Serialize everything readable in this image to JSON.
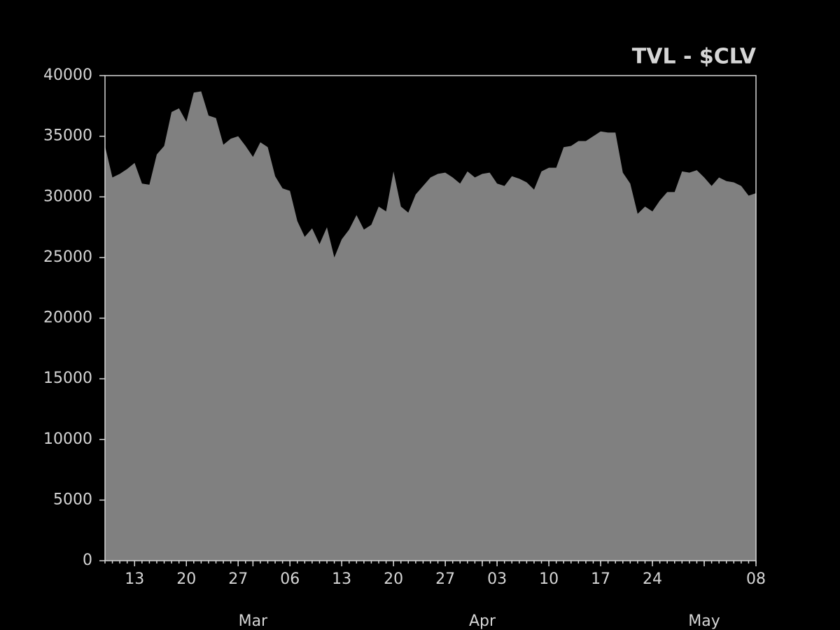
{
  "chart_data": {
    "type": "area",
    "title": "TVL - $CLV",
    "color": "#808080",
    "x": [
      "02-09",
      "02-10",
      "02-11",
      "02-12",
      "02-13",
      "02-14",
      "02-15",
      "02-16",
      "02-17",
      "02-18",
      "02-19",
      "02-20",
      "02-21",
      "02-22",
      "02-23",
      "02-24",
      "02-25",
      "02-26",
      "02-27",
      "02-28",
      "03-01",
      "03-02",
      "03-03",
      "03-04",
      "03-05",
      "03-06",
      "03-07",
      "03-08",
      "03-09",
      "03-10",
      "03-11",
      "03-12",
      "03-13",
      "03-14",
      "03-15",
      "03-16",
      "03-17",
      "03-18",
      "03-19",
      "03-20",
      "03-21",
      "03-22",
      "03-23",
      "03-24",
      "03-25",
      "03-26",
      "03-27",
      "03-28",
      "03-29",
      "03-30",
      "03-31",
      "04-01",
      "04-02",
      "04-03",
      "04-04",
      "04-05",
      "04-06",
      "04-07",
      "04-08",
      "04-09",
      "04-10",
      "04-11",
      "04-12",
      "04-13",
      "04-14",
      "04-15",
      "04-16",
      "04-17",
      "04-18",
      "04-19",
      "04-20",
      "04-21",
      "04-22",
      "04-23",
      "04-24",
      "04-25",
      "04-26",
      "04-27",
      "04-28",
      "04-29",
      "04-30",
      "05-01",
      "05-02",
      "05-03",
      "05-04",
      "05-05",
      "05-06",
      "05-07",
      "05-08"
    ],
    "values": [
      34200,
      31600,
      31900,
      32300,
      32800,
      31100,
      31000,
      33500,
      34200,
      37000,
      37300,
      36200,
      38600,
      38700,
      36700,
      36500,
      34300,
      34800,
      35000,
      34200,
      33300,
      34500,
      34100,
      31700,
      30700,
      30500,
      28000,
      26700,
      27400,
      26100,
      27500,
      25000,
      26500,
      27300,
      28500,
      27300,
      27700,
      29200,
      28800,
      32100,
      29200,
      28700,
      30200,
      30900,
      31600,
      31900,
      32000,
      31600,
      31100,
      32100,
      31600,
      31900,
      32000,
      31100,
      30900,
      31700,
      31500,
      31200,
      30600,
      32100,
      32400,
      32400,
      34100,
      34200,
      34600,
      34600,
      35000,
      35400,
      35300,
      35300,
      32000,
      31100,
      28600,
      29200,
      28800,
      29700,
      30400,
      30400,
      32100,
      32000,
      32200,
      31600,
      30900,
      31600,
      31300,
      31200,
      30900,
      30100,
      30300
    ],
    "xlim": [
      "02-09",
      "05-08"
    ],
    "xticks": [
      {
        "value": "02-13",
        "label": "13"
      },
      {
        "value": "02-20",
        "label": "20"
      },
      {
        "value": "02-27",
        "label": "27"
      },
      {
        "value": "03-06",
        "label": "06"
      },
      {
        "value": "03-13",
        "label": "13"
      },
      {
        "value": "03-20",
        "label": "20"
      },
      {
        "value": "03-27",
        "label": "27"
      },
      {
        "value": "04-03",
        "label": "03"
      },
      {
        "value": "04-10",
        "label": "10"
      },
      {
        "value": "04-17",
        "label": "17"
      },
      {
        "value": "04-24",
        "label": "24"
      },
      {
        "value": "05-08",
        "label": "08"
      }
    ],
    "month_ticks": [
      {
        "value": "03-01",
        "label": "Mar"
      },
      {
        "value": "04-01",
        "label": "Apr"
      },
      {
        "value": "05-01",
        "label": "May"
      }
    ],
    "ylim": [
      0,
      40000
    ],
    "yticks": [
      0,
      5000,
      10000,
      15000,
      20000,
      25000,
      30000,
      35000,
      40000
    ],
    "grid": false
  }
}
